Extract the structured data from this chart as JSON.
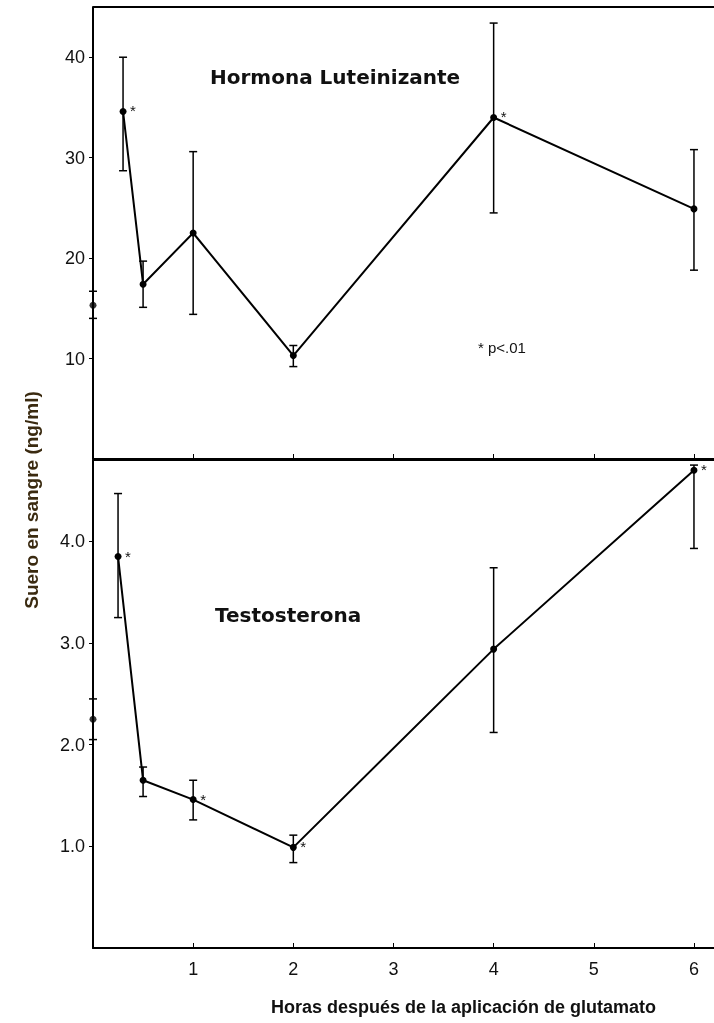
{
  "chart_data": [
    {
      "type": "line",
      "title": "Hormona Luteinizante",
      "ylabel": "Suero en sangre (ng/ml)",
      "xlim": [
        0,
        6.2
      ],
      "xticks": [
        1,
        2,
        3,
        4,
        5,
        6
      ],
      "ylim": [
        0,
        45
      ],
      "yticks": [
        10,
        20,
        30,
        40
      ],
      "tick_labels": "y",
      "grid": false,
      "marker": "circle",
      "line_style": "solid",
      "series": [
        {
          "type": "scatter",
          "color": "#000000",
          "x": [
            0
          ],
          "values": [
            15.3
          ],
          "errors": [
            [
              14.0,
              16.7
            ]
          ]
        },
        {
          "type": "line",
          "color": "#000000",
          "x": [
            0.3,
            0.5,
            1,
            2,
            4,
            6
          ],
          "values": [
            34.6,
            17.4,
            22.5,
            10.3,
            34.0,
            24.9
          ],
          "errors": [
            [
              28.7,
              40.0
            ],
            [
              15.1,
              19.7
            ],
            [
              14.4,
              30.6
            ],
            [
              9.2,
              11.3
            ],
            [
              24.5,
              43.4
            ],
            [
              18.8,
              30.8
            ]
          ]
        }
      ],
      "annotations": [
        {
          "text": "*",
          "x": 0.3,
          "y": 34.6
        },
        {
          "text": "*",
          "x": 4,
          "y": 34.0
        },
        "* p<.01"
      ]
    },
    {
      "type": "line",
      "title": "Testosterona",
      "xlabel": "Horas después de la aplicación de glutamato",
      "xlim": [
        0,
        6.2
      ],
      "xticks": [
        1,
        2,
        3,
        4,
        5,
        6
      ],
      "ylim": [
        0,
        4.8
      ],
      "yticks": [
        {
          "value": 1,
          "label": "1.0"
        },
        {
          "value": 2,
          "label": "2.0"
        },
        {
          "value": 3,
          "label": "3.0"
        },
        {
          "value": 4,
          "label": "4.0"
        }
      ],
      "grid": false,
      "marker": "circle",
      "line_style": "solid",
      "series": [
        {
          "type": "scatter",
          "color": "#000000",
          "x": [
            0
          ],
          "values": [
            2.25
          ],
          "errors": [
            [
              2.05,
              2.45
            ]
          ]
        },
        {
          "type": "line",
          "color": "#000000",
          "x": [
            0.25,
            0.5,
            1,
            2,
            4,
            6
          ],
          "values": [
            3.85,
            1.65,
            1.46,
            0.99,
            2.94,
            4.7
          ],
          "errors": [
            [
              3.25,
              4.47
            ],
            [
              1.49,
              1.78
            ],
            [
              1.26,
              1.65
            ],
            [
              0.84,
              1.11
            ],
            [
              2.12,
              3.74
            ],
            [
              3.93,
              4.75
            ]
          ]
        }
      ],
      "annotations": [
        {
          "text": "*",
          "x": 0.25,
          "y": 3.85
        },
        {
          "text": "*",
          "x": 1,
          "y": 1.46
        },
        {
          "text": "*",
          "x": 2,
          "y": 0.99
        },
        {
          "text": "*",
          "x": 6,
          "y": 4.7
        }
      ]
    }
  ]
}
